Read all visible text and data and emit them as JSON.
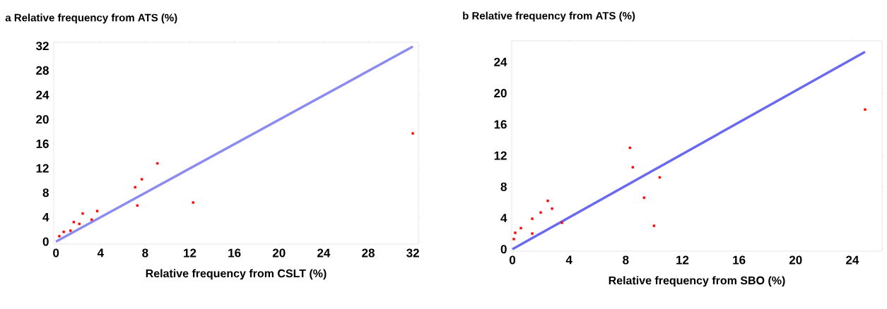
{
  "chart_data": [
    {
      "type": "scatter",
      "title": "a  Relative frequency from ATS  (%)",
      "xlabel": "Relative frequency from CSLT (%)",
      "xlim": [
        -0.2,
        32.5
      ],
      "ylim": [
        -0.4,
        32.6
      ],
      "xticks": [
        0,
        4,
        8,
        12,
        16,
        20,
        24,
        28,
        32
      ],
      "yticks": [
        0,
        4,
        8,
        12,
        16,
        20,
        24,
        28,
        32
      ],
      "grid": false,
      "series": [
        {
          "type": "line",
          "color": "#8c8cf0",
          "x": [
            0,
            32
          ],
          "values": [
            0,
            31.9
          ]
        },
        {
          "color": "#ff0000",
          "marker": "square",
          "x": [
            32.0,
            9.1,
            7.7,
            7.1,
            7.3,
            12.3,
            2.4,
            3.7,
            3.2,
            1.6,
            2.1,
            1.3,
            0.7,
            0.3
          ],
          "values": [
            17.7,
            12.8,
            10.2,
            8.9,
            5.9,
            6.4,
            4.6,
            5.0,
            3.6,
            3.2,
            2.9,
            1.8,
            1.6,
            0.9
          ]
        }
      ]
    },
    {
      "type": "scatter",
      "title": "b  Relative frequency from ATS  (%)",
      "xlabel": "Relative frequency from SBO  (%)",
      "xlim": [
        -0.05,
        26.1
      ],
      "ylim": [
        -0.25,
        26.7
      ],
      "xticks": [
        0,
        4,
        8,
        12,
        16,
        20,
        24
      ],
      "yticks": [
        0,
        4,
        8,
        12,
        16,
        20,
        24
      ],
      "grid": false,
      "series": [
        {
          "type": "line",
          "color": "#6a6af0",
          "x": [
            0,
            24.9
          ],
          "values": [
            0,
            25.3
          ]
        },
        {
          "color": "#ff0000",
          "marker": "square",
          "x": [
            24.9,
            8.3,
            8.5,
            10.4,
            9.3,
            10.0,
            2.5,
            2.8,
            2.0,
            1.4,
            3.5,
            0.6,
            0.2,
            1.4,
            0.1
          ],
          "values": [
            17.9,
            13.0,
            10.5,
            9.2,
            6.6,
            3.0,
            6.2,
            5.2,
            4.7,
            3.9,
            3.4,
            2.7,
            2.1,
            2.0,
            1.3
          ]
        }
      ]
    }
  ]
}
